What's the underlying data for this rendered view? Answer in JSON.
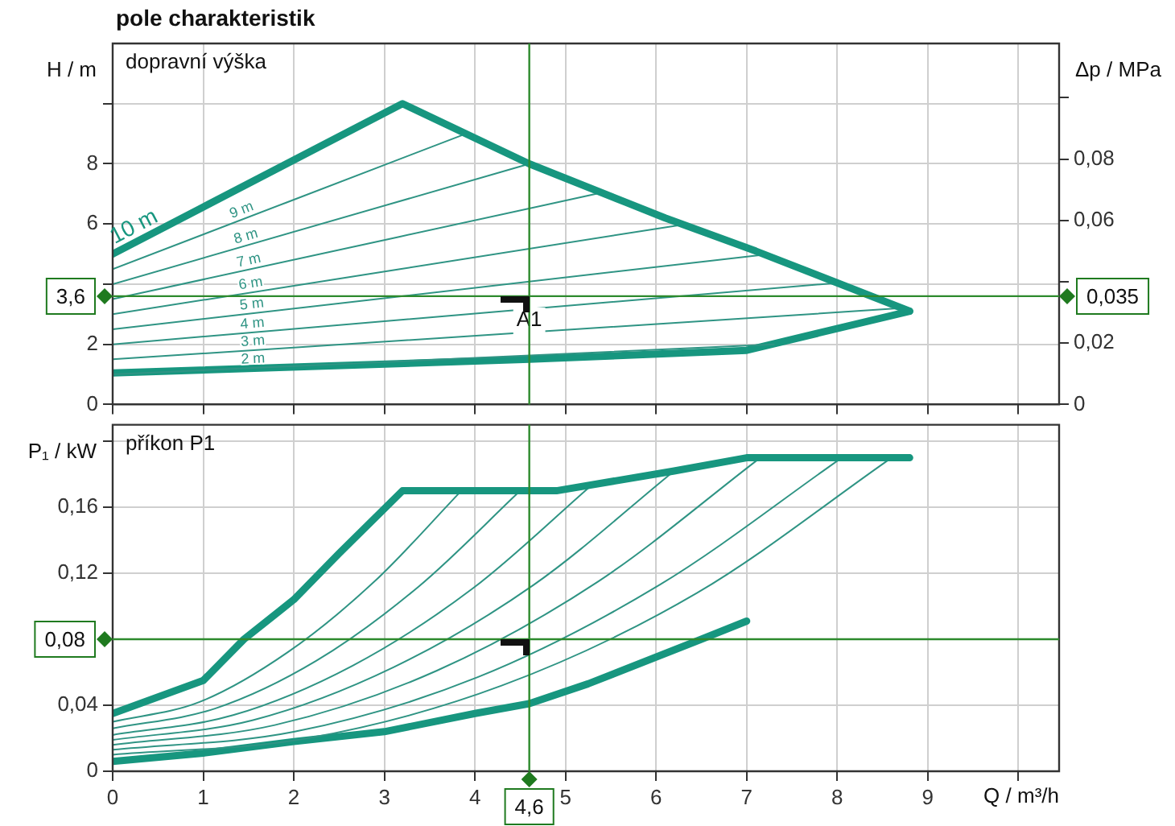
{
  "chart_data": [
    {
      "type": "line",
      "title": "pole charakteristik",
      "ylabel": "H / m",
      "y2label": "Δp / MPa",
      "annotations": [
        "dopravní výška",
        {
          "text": "A1",
          "x": 4.6,
          "y": 3.6
        },
        "0,035"
      ],
      "xlim": [
        0,
        10.45
      ],
      "xticks": [
        0,
        1,
        2,
        3,
        4,
        5,
        6,
        7,
        8,
        9,
        10
      ],
      "ylim": [
        0,
        12
      ],
      "yticks": [
        0,
        2,
        {
          "value": 4,
          "label": null
        },
        6,
        8,
        {
          "value": 10,
          "label": null
        }
      ],
      "y2lim": [
        0,
        0.1177
      ],
      "y2ticks": [
        0,
        {
          "value": 0.02,
          "label": "0,02"
        },
        {
          "value": 0.04,
          "label": null
        },
        {
          "value": 0.06,
          "label": "0,06"
        },
        {
          "value": 0.08,
          "label": "0,08"
        },
        {
          "value": 0.1,
          "label": null
        }
      ],
      "grid": true,
      "tick_labels": "y",
      "marker": "none",
      "series": [
        {
          "name": "10 m",
          "color": "#17967f",
          "x": [
            0,
            3.2,
            4.6,
            6.1,
            7.1,
            8.8
          ],
          "values": [
            5,
            10,
            8,
            6.2,
            5.1,
            3.1
          ]
        },
        {
          "name": "9 m",
          "color": "#2f9484",
          "x": [
            0,
            3.9
          ],
          "values": [
            4.5,
            9
          ]
        },
        {
          "name": "8 m",
          "color": "#2f9484",
          "x": [
            0,
            4.6
          ],
          "values": [
            4,
            8
          ]
        },
        {
          "name": "7 m",
          "color": "#2f9484",
          "x": [
            0,
            5.4
          ],
          "values": [
            3.5,
            7.04
          ]
        },
        {
          "name": "6 m",
          "color": "#2f9484",
          "x": [
            0,
            6.3
          ],
          "values": [
            3,
            5.98
          ]
        },
        {
          "name": "5 m",
          "color": "#2f9484",
          "x": [
            0,
            7.2
          ],
          "values": [
            2.5,
            4.98
          ]
        },
        {
          "name": "4 m",
          "color": "#2f9484",
          "x": [
            0,
            8
          ],
          "values": [
            2,
            4.04
          ]
        },
        {
          "name": "3 m",
          "color": "#2f9484",
          "x": [
            0,
            8.7
          ],
          "values": [
            1.5,
            3.2
          ]
        },
        {
          "name": "2 m",
          "color": "#2f9484",
          "x": [
            0,
            7.3
          ],
          "values": [
            1,
            2
          ]
        },
        {
          "color": "#17967f",
          "x": [
            0,
            4.6,
            7,
            8.8
          ],
          "values": [
            1.05,
            1.5,
            1.8,
            3.1
          ]
        }
      ],
      "ref_lines": [
        {
          "axis": "y",
          "value": 3.6,
          "label": "3,6",
          "color": "#2d8a2d"
        },
        {
          "axis": "x",
          "value": 4.6,
          "color": "#2d8a2d"
        }
      ]
    },
    {
      "type": "line",
      "ylabel": "P₁ / kW",
      "xlabel": "Q / m³/h",
      "annotations": [
        "příkon P1"
      ],
      "xlim": [
        0,
        10.45
      ],
      "xticks": [
        0,
        1,
        2,
        3,
        4,
        5,
        6,
        7,
        8,
        9,
        {
          "value": 10,
          "label": null
        }
      ],
      "ylim": [
        0,
        0.21
      ],
      "yticks": [
        0,
        {
          "value": 0.04,
          "label": "0,04"
        },
        {
          "value": 0.08,
          "label": null
        },
        {
          "value": 0.12,
          "label": "0,12"
        },
        {
          "value": 0.16,
          "label": "0,16"
        },
        {
          "value": 0.2,
          "label": null
        }
      ],
      "grid": true,
      "marker": "none",
      "series": [
        {
          "color": "#17967f",
          "x": [
            0,
            1,
            1.45,
            2,
            2.5,
            3.2,
            4.9,
            6.2,
            7,
            8.8
          ],
          "values": [
            0.035,
            0.055,
            0.08,
            0.104,
            0.132,
            0.17,
            0.17,
            0.182,
            0.19,
            0.19
          ]
        },
        {
          "color": "#2f9484",
          "x": [
            0,
            0.96,
            1.93,
            2.89,
            3.85
          ],
          "values": [
            0.03,
            0.042,
            0.072,
            0.115,
            0.17
          ]
        },
        {
          "color": "#2f9484",
          "x": [
            0,
            1.13,
            2.25,
            3.38,
            4.5
          ],
          "values": [
            0.026,
            0.038,
            0.067,
            0.112,
            0.17
          ]
        },
        {
          "color": "#2f9484",
          "x": [
            0,
            1.33,
            2.65,
            3.98,
            5.3
          ],
          "values": [
            0.022,
            0.034,
            0.064,
            0.111,
            0.174
          ]
        },
        {
          "color": "#2f9484",
          "x": [
            0,
            1.55,
            3.1,
            4.65,
            6.2
          ],
          "values": [
            0.019,
            0.031,
            0.063,
            0.113,
            0.182
          ]
        },
        {
          "color": "#2f9484",
          "x": [
            0,
            1.79,
            3.58,
            5.36,
            7.15
          ],
          "values": [
            0.016,
            0.028,
            0.061,
            0.115,
            0.19
          ]
        },
        {
          "color": "#2f9484",
          "x": [
            0,
            2.01,
            4.03,
            6.04,
            8.05
          ],
          "values": [
            0.013,
            0.024,
            0.057,
            0.113,
            0.19
          ]
        },
        {
          "color": "#2f9484",
          "x": [
            0,
            2.15,
            4.3,
            6.45,
            8.6
          ],
          "values": [
            0.01,
            0.02,
            0.052,
            0.108,
            0.19
          ]
        },
        {
          "color": "#17967f",
          "x": [
            0,
            1,
            2,
            3,
            4,
            4.6,
            5.25,
            6.5,
            7
          ],
          "values": [
            0.006,
            0.011,
            0.018,
            0.024,
            0.035,
            0.041,
            0.053,
            0.08,
            0.091
          ]
        }
      ],
      "ref_lines": [
        {
          "axis": "y",
          "value": 0.08,
          "label": "0,08",
          "color": "#2d8a2d"
        },
        {
          "axis": "x",
          "value": 4.6,
          "label": "4,6",
          "color": "#2d8a2d"
        }
      ]
    }
  ]
}
